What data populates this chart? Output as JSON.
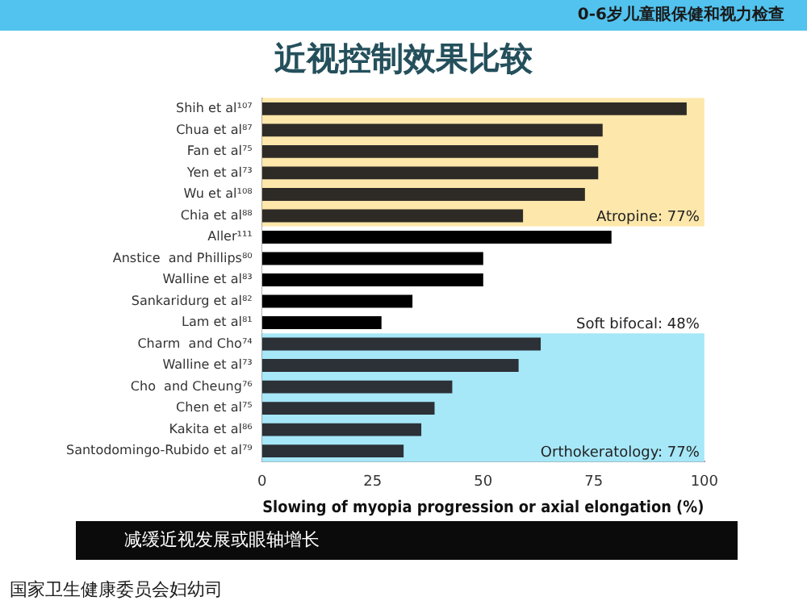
{
  "chart_data": {
    "type": "bar",
    "orientation": "horizontal",
    "title": "近视控制效果比较",
    "xlabel": "Slowing of myopia progression or axial elongation (%)",
    "categories": [
      "Shih et al¹⁰⁷",
      "Chua et al⁸⁷",
      "Fan et al⁷⁵",
      "Yen et al⁷³",
      "Wu et al¹⁰⁸",
      "Chia et al⁸⁸",
      "Aller¹¹¹",
      "Anstice  and Phillips⁸⁰",
      "Walline et al⁸³",
      "Sankaridurg et al⁸²",
      "Lam et al⁸¹",
      "Charm  and Cho⁷⁴",
      "Walline et al⁷³",
      "Cho  and Cheung⁷⁶",
      "Chen et al⁷⁵",
      "Kakita et al⁸⁶",
      "Santodomingo-Rubido et al⁷⁹"
    ],
    "values": [
      96,
      77,
      76,
      76,
      73,
      59,
      79,
      50,
      50,
      34,
      27,
      63,
      58,
      43,
      39,
      36,
      32
    ],
    "colors": [
      "#2e2b26",
      "#2e2b26",
      "#2e2b26",
      "#2e2b26",
      "#2e2b26",
      "#2e2b26",
      "#000000",
      "#000000",
      "#000000",
      "#000000",
      "#000000",
      "#2b3136",
      "#2b3136",
      "#2b3136",
      "#2b3136",
      "#2b3136",
      "#2b3136"
    ],
    "xlim": [
      0,
      100
    ],
    "xticks": [
      0,
      25,
      50,
      75,
      100
    ],
    "grid": false,
    "legend": false,
    "bands": [
      {
        "axis": "y",
        "from": "Shih et al¹⁰⁷",
        "to": "Chia et al⁸⁸",
        "label": "Atropine: 77%",
        "color": "#fde7aa"
      },
      {
        "axis": "y",
        "from": "Aller¹¹¹",
        "to": "Lam et al⁸¹",
        "label": "Soft bifocal: 48%",
        "color": "#ffffff"
      },
      {
        "axis": "y",
        "from": "Charm  and Cho⁷⁴",
        "to": "Santodomingo-Rubido et al⁷⁹",
        "label": "Orthokeratology: 77%",
        "color": "#a6e7f8"
      }
    ],
    "annotations": [
      "0-6岁儿童眼保健和视力检查",
      "减缓近视发展或眼轴增长",
      "国家卫生健康委员会妇幼司"
    ]
  }
}
